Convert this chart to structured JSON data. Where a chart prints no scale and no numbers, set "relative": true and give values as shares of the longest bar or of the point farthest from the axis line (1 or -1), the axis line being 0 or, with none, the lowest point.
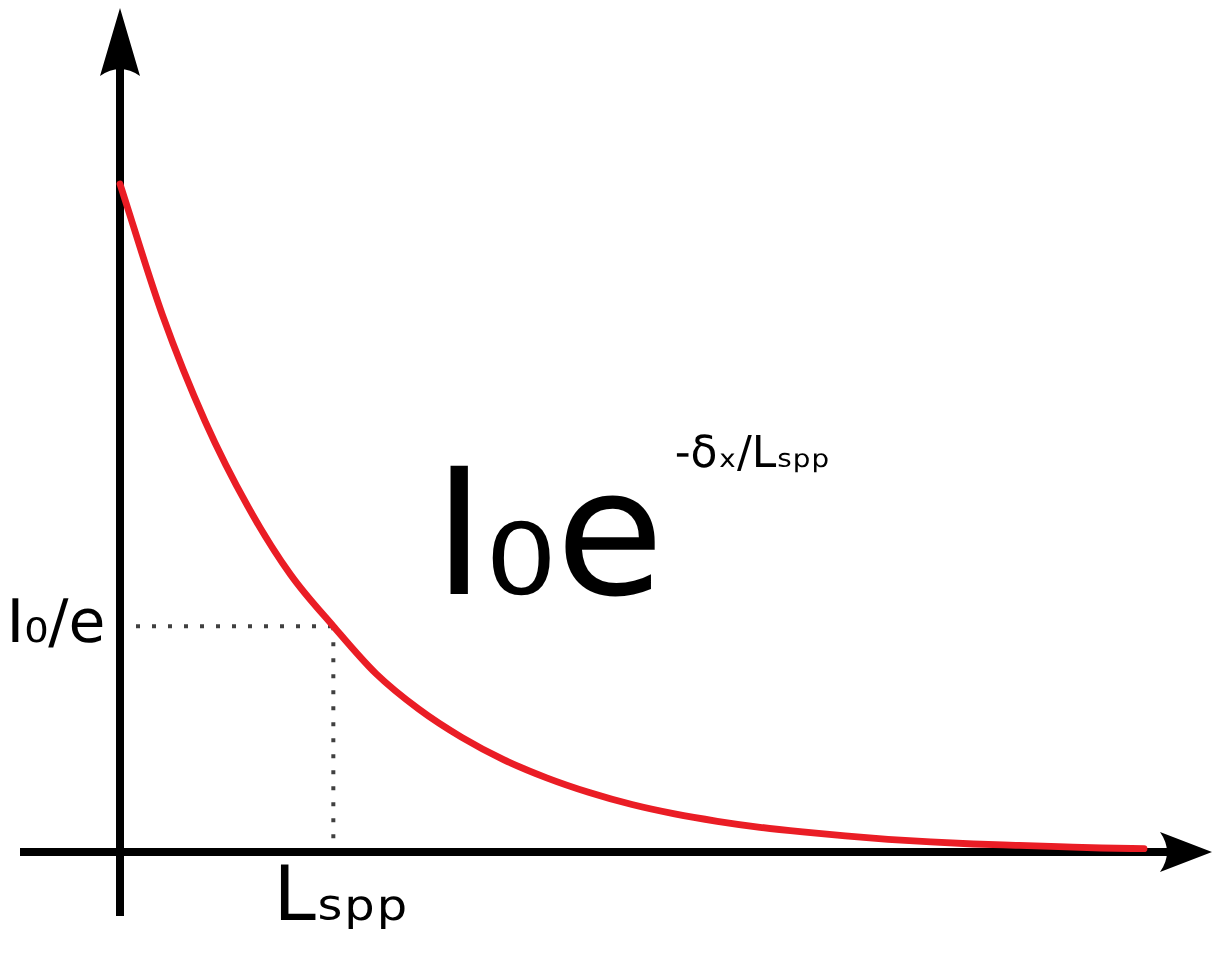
{
  "chart_data": {
    "type": "line",
    "relative": true,
    "categories": [
      null,
      null,
      null,
      null,
      null,
      null,
      null,
      null,
      null,
      null,
      null,
      null,
      null,
      null,
      null,
      null,
      null,
      null,
      null,
      null,
      null,
      null,
      null,
      null,
      null
    ],
    "series": [
      {
        "color": "#ea1d25",
        "values": [
          1.0,
          0.803,
          0.644,
          0.517,
          0.415,
          0.338,
          0.267,
          0.214,
          0.172,
          0.138,
          0.111,
          0.089,
          0.071,
          0.057,
          0.046,
          0.037,
          0.03,
          0.024,
          0.019,
          0.015,
          0.012,
          0.01,
          0.008,
          0.006,
          0.005
        ]
      }
    ],
    "ref_lines": [
      {
        "axis": "y",
        "value": 0.338,
        "label": "I₀/e",
        "line_style": "dotted",
        "color": "#404040"
      }
    ],
    "annotations": [
      "I₀e$^{-δₓ/Lₛₚₚ}$",
      "Lₛₚₚ"
    ],
    "marker": "none"
  }
}
